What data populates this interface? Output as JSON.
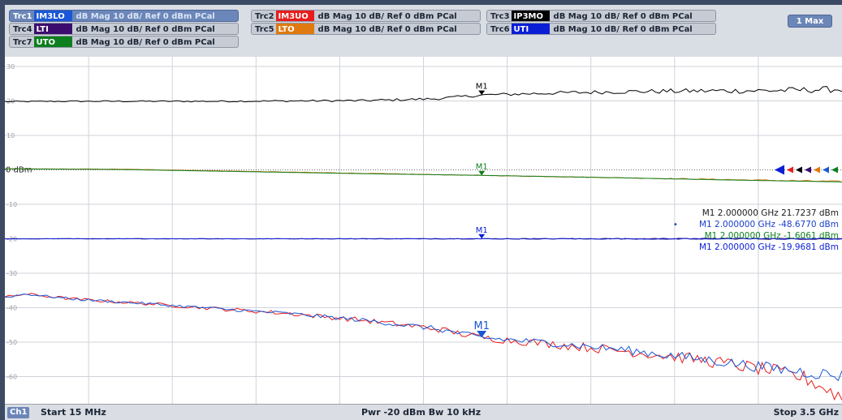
{
  "header": {
    "traces": [
      {
        "id": "Trc1",
        "name": "IM3LO",
        "format": "dB Mag  10 dB/ Ref 0 dBm  PCal",
        "color": "#1a56d6",
        "active": true
      },
      {
        "id": "Trc2",
        "name": "IM3UO",
        "format": "dB Mag  10 dB/ Ref 0 dBm  PCal",
        "color": "#e81c1c",
        "active": false
      },
      {
        "id": "Trc3",
        "name": "IP3MO",
        "format": "dB Mag  10 dB/ Ref 0 dBm  PCal",
        "color": "#000000",
        "active": false
      },
      {
        "id": "Trc4",
        "name": "LTI",
        "format": "dB Mag  10 dB/ Ref 0 dBm  PCal",
        "color": "#3c0d6e",
        "active": false
      },
      {
        "id": "Trc5",
        "name": "LTO",
        "format": "dB Mag  10 dB/ Ref 0 dBm  PCal",
        "color": "#e07a10",
        "active": false
      },
      {
        "id": "Trc6",
        "name": "UTI",
        "format": "dB Mag  10 dB/ Ref 0 dBm  PCal",
        "color": "#0a1ed6",
        "active": false
      },
      {
        "id": "Trc7",
        "name": "UTO",
        "format": "dB Mag  10 dB/ Ref 0 dBm  PCal",
        "color": "#0d7f1e",
        "active": false
      }
    ],
    "max_button": "1 Max"
  },
  "footer": {
    "channel": "Ch1",
    "start": "Start  15 MHz",
    "center": "Pwr  -20 dBm  Bw  10 kHz",
    "stop": "Stop  3.5 GHz"
  },
  "chart_data": {
    "type": "line",
    "x_unit": "GHz",
    "xlim": [
      0.015,
      3.5
    ],
    "ylim": [
      -72,
      30
    ],
    "y_ticks": [
      30,
      20,
      10,
      0,
      -10,
      -20,
      -30,
      -40,
      -50,
      -60,
      -70
    ],
    "y_tick_labels": [
      "30",
      "20",
      "10",
      "0 dBm",
      "-10",
      "-20",
      "-30",
      "-40",
      "-50",
      "-60",
      "-70"
    ],
    "grid": true,
    "ref_level": 0,
    "series": [
      {
        "name": "IP3MO",
        "color": "#000000",
        "noise": 0.5,
        "x": [
          0.015,
          0.3,
          0.6,
          0.9,
          1.2,
          1.5,
          1.8,
          2.0,
          2.3,
          2.6,
          2.9,
          3.2,
          3.5
        ],
        "y": [
          19.8,
          19.9,
          19.9,
          19.9,
          20.0,
          20.1,
          20.6,
          21.7,
          22.3,
          22.7,
          22.9,
          23.0,
          23.4
        ]
      },
      {
        "name": "LTO",
        "color": "#e07a10",
        "noise": 0.1,
        "x": [
          0.015,
          0.5,
          1.0,
          1.5,
          2.0,
          2.5,
          3.0,
          3.5
        ],
        "y": [
          0.3,
          0.2,
          -0.4,
          -1.0,
          -1.6,
          -2.2,
          -2.8,
          -3.4
        ]
      },
      {
        "name": "UTO",
        "color": "#0d7f1e",
        "noise": 0.0,
        "x": [
          0.015,
          0.5,
          1.0,
          1.5,
          2.0,
          2.5,
          3.0,
          3.5
        ],
        "y": [
          0.3,
          0.1,
          -0.5,
          -1.1,
          -1.6,
          -2.2,
          -2.9,
          -3.5
        ]
      },
      {
        "name": "LTI",
        "color": "#3c0d6e",
        "noise": 0.12,
        "x": [
          0.015,
          3.5
        ],
        "y": [
          -20.0,
          -20.0
        ]
      },
      {
        "name": "UTI",
        "color": "#0a1ed6",
        "noise": 0.12,
        "x": [
          0.015,
          3.5
        ],
        "y": [
          -20.0,
          -20.0
        ]
      },
      {
        "name": "IM3UO",
        "color": "#e81c1c",
        "noise": 1.2,
        "x": [
          0.015,
          0.1,
          0.3,
          0.6,
          0.9,
          1.2,
          1.5,
          1.8,
          2.0,
          2.3,
          2.6,
          2.9,
          3.2,
          3.35,
          3.5
        ],
        "y": [
          -37.0,
          -36.0,
          -37.5,
          -38.8,
          -40.3,
          -41.7,
          -43.6,
          -46.0,
          -48.7,
          -50.6,
          -52.6,
          -55.0,
          -58.2,
          -60.5,
          -66.0
        ]
      },
      {
        "name": "IM3LO",
        "color": "#1a56d6",
        "noise": 1.0,
        "x": [
          0.015,
          0.1,
          0.3,
          0.6,
          0.9,
          1.2,
          1.5,
          1.8,
          2.0,
          2.3,
          2.6,
          2.9,
          3.2,
          3.5
        ],
        "y": [
          -37.0,
          -36.0,
          -37.5,
          -38.8,
          -40.3,
          -41.7,
          -43.6,
          -46.0,
          -48.7,
          -50.3,
          -52.3,
          -54.8,
          -57.5,
          -59.8
        ]
      }
    ],
    "markers": [
      {
        "label": "M1",
        "x": 2.0,
        "y": 21.7237,
        "color": "#000000"
      },
      {
        "label": "M1",
        "x": 2.0,
        "y": -1.6061,
        "color": "#0d7f1e"
      },
      {
        "label": "M1",
        "x": 2.0,
        "y": -19.9681,
        "color": "#0a1ed6"
      },
      {
        "label": "M1",
        "x": 2.0,
        "y": -48.677,
        "color": "#1a56d6"
      }
    ],
    "marker_readouts": [
      {
        "text": "M1  2.000000  GHz  21.7237 dBm",
        "color": "#1b1b1b",
        "bullet": ""
      },
      {
        "text": "M1  2.000000  GHz  -48.6770 dBm",
        "color": "#1a3fc7",
        "bullet": "•"
      },
      {
        "text": "M1  2.000000  GHz  -1.6061 dBm",
        "color": "#0d7f1e",
        "bullet": ""
      },
      {
        "text": "M1  2.000000  GHz  -19.9681 dBm",
        "color": "#0a1ed6",
        "bullet": ""
      }
    ],
    "ref_arrow_colors": [
      "#0a1ed6",
      "#e81c1c",
      "#000000",
      "#3c0d6e",
      "#e07a10",
      "#1a56d6",
      "#0d7f1e"
    ]
  }
}
